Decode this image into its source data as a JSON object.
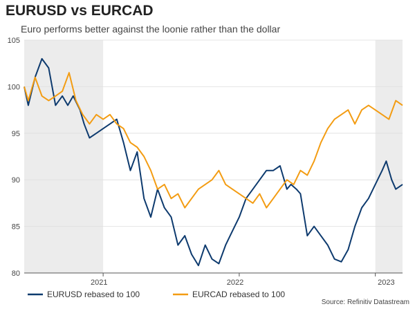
{
  "header": {
    "title": "EURUSD vs EURCAD",
    "subtitle": "Euro performs better against the loonie rather than the dollar"
  },
  "source": "Source: Refinitiv Datastream",
  "chart_data": {
    "type": "line",
    "title": "EURUSD vs EURCAD",
    "subtitle": "Euro performs better against the loonie rather than the dollar",
    "xlabel": "",
    "ylabel": "",
    "x_range": [
      2020.42,
      2023.2
    ],
    "ylim": [
      80,
      105
    ],
    "yticks": [
      80,
      85,
      90,
      95,
      100,
      105
    ],
    "xticks": [
      {
        "pos": 2021.0,
        "label": "2021"
      },
      {
        "pos": 2022.0,
        "label": "2022"
      },
      {
        "pos": 2023.0,
        "label": "2023"
      }
    ],
    "x_label_positions": [
      {
        "pos": 2020.97,
        "label": "2021"
      },
      {
        "pos": 2021.97,
        "label": "2022"
      },
      {
        "pos": 2023.08,
        "label": "2023"
      }
    ],
    "shaded_regions": [
      [
        2020.42,
        2021.0
      ],
      [
        2023.0,
        2023.2
      ]
    ],
    "series": [
      {
        "name": "EURUSD rebased to 100",
        "color": "#0d3a6e",
        "x": [
          2020.42,
          2020.45,
          2020.5,
          2020.55,
          2020.6,
          2020.65,
          2020.7,
          2020.74,
          2020.78,
          2020.83,
          2020.86,
          2020.9,
          2020.95,
          2021.0,
          2021.05,
          2021.1,
          2021.15,
          2021.2,
          2021.25,
          2021.3,
          2021.35,
          2021.4,
          2021.45,
          2021.5,
          2021.55,
          2021.6,
          2021.65,
          2021.7,
          2021.75,
          2021.8,
          2021.85,
          2021.9,
          2021.95,
          2022.0,
          2022.05,
          2022.1,
          2022.15,
          2022.2,
          2022.25,
          2022.3,
          2022.35,
          2022.38,
          2022.42,
          2022.45,
          2022.5,
          2022.55,
          2022.6,
          2022.65,
          2022.7,
          2022.75,
          2022.8,
          2022.85,
          2022.9,
          2022.95,
          2023.0,
          2023.05,
          2023.08,
          2023.12,
          2023.15,
          2023.2
        ],
        "values": [
          100,
          98,
          101,
          103,
          102,
          98,
          99,
          98,
          99,
          97.5,
          96,
          94.5,
          95,
          95.5,
          96,
          96.5,
          94,
          91,
          93,
          88,
          86,
          89,
          87,
          86,
          83,
          84,
          82,
          80.8,
          83,
          81.5,
          81,
          83,
          84.5,
          86,
          88,
          89,
          90,
          91,
          91,
          91.5,
          89,
          89.5,
          89,
          88.5,
          84,
          85,
          84,
          83,
          81.5,
          81.2,
          82.5,
          85,
          87,
          88,
          89.5,
          91,
          92,
          90,
          89,
          89.5
        ]
      },
      {
        "name": "EURCAD rebased to 100",
        "color": "#f39c12",
        "x": [
          2020.42,
          2020.45,
          2020.5,
          2020.55,
          2020.6,
          2020.65,
          2020.7,
          2020.75,
          2020.8,
          2020.85,
          2020.9,
          2020.95,
          2021.0,
          2021.05,
          2021.1,
          2021.15,
          2021.2,
          2021.25,
          2021.3,
          2021.35,
          2021.4,
          2021.45,
          2021.5,
          2021.55,
          2021.6,
          2021.65,
          2021.7,
          2021.75,
          2021.8,
          2021.85,
          2021.9,
          2021.95,
          2022.0,
          2022.05,
          2022.1,
          2022.15,
          2022.2,
          2022.25,
          2022.3,
          2022.35,
          2022.4,
          2022.45,
          2022.5,
          2022.55,
          2022.6,
          2022.65,
          2022.7,
          2022.75,
          2022.8,
          2022.85,
          2022.9,
          2022.95,
          2023.0,
          2023.05,
          2023.1,
          2023.15,
          2023.2
        ],
        "values": [
          100,
          98.5,
          101,
          99,
          98.5,
          99,
          99.5,
          101.5,
          98.5,
          97,
          96,
          97,
          96.5,
          97,
          96,
          95.5,
          94,
          93.5,
          92.5,
          91,
          89,
          89.5,
          88,
          88.5,
          87,
          88,
          89,
          89.5,
          90,
          91,
          89.5,
          89,
          88.5,
          88,
          87.5,
          88.5,
          87,
          88,
          89,
          90,
          89.5,
          91,
          90.5,
          92,
          94,
          95.5,
          96.5,
          97,
          97.5,
          96,
          97.5,
          98,
          97.5,
          97,
          96.5,
          98.5,
          98
        ]
      }
    ],
    "legend": [
      {
        "label": "EURUSD rebased to 100",
        "color": "#0d3a6e"
      },
      {
        "label": "EURCAD rebased to 100",
        "color": "#f39c12"
      }
    ],
    "legend_position": "bottom-left"
  }
}
